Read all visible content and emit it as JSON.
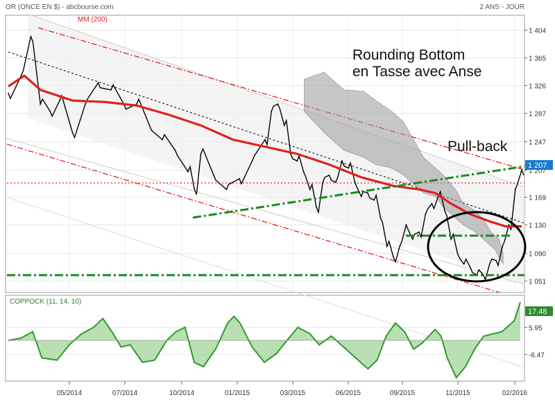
{
  "header": {
    "instrument": "OR (ONCE EN $) - abcbourse.com",
    "period": "2 ANS - JOUR"
  },
  "chart_data": [
    {
      "type": "line",
      "panel": "price",
      "legend": "MM (200)",
      "y_ticks": [
        "1 404",
        "1 365",
        "1 326",
        "1 287",
        "1 247",
        "1 207",
        "1 169",
        "1 130",
        "1 090",
        "1 051"
      ],
      "ylim": [
        1035,
        1425
      ],
      "x_ticks": [
        "05/2014",
        "07/2014",
        "10/2014",
        "01/2015",
        "03/2015",
        "06/2015",
        "09/2015",
        "11/2015",
        "02/2016"
      ],
      "last_value": "1 207",
      "colors": {
        "price": "#000000",
        "ma200": "#e02020",
        "channel": "#e02020",
        "trend": "#1a8a1a"
      },
      "price": [
        [
          0,
          1315
        ],
        [
          4,
          1340
        ],
        [
          7,
          1395
        ],
        [
          10,
          1300
        ],
        [
          13,
          1290
        ],
        [
          16,
          1305
        ],
        [
          20,
          1260
        ],
        [
          24,
          1300
        ],
        [
          28,
          1330
        ],
        [
          32,
          1320
        ],
        [
          36,
          1300
        ],
        [
          40,
          1300
        ],
        [
          44,
          1270
        ],
        [
          48,
          1250
        ],
        [
          52,
          1235
        ],
        [
          56,
          1205
        ],
        [
          58,
          1180
        ],
        [
          60,
          1230
        ],
        [
          64,
          1200
        ],
        [
          68,
          1180
        ],
        [
          72,
          1195
        ],
        [
          76,
          1220
        ],
        [
          80,
          1250
        ],
        [
          82,
          1290
        ],
        [
          84,
          1300
        ],
        [
          86,
          1270
        ],
        [
          88,
          1230
        ],
        [
          90,
          1220
        ],
        [
          92,
          1205
        ],
        [
          94,
          1180
        ],
        [
          96,
          1155
        ],
        [
          98,
          1190
        ],
        [
          100,
          1200
        ],
        [
          102,
          1190
        ],
        [
          104,
          1220
        ],
        [
          106,
          1210
        ],
        [
          108,
          1190
        ],
        [
          110,
          1170
        ],
        [
          112,
          1175
        ],
        [
          114,
          1165
        ],
        [
          116,
          1140
        ],
        [
          118,
          1100
        ],
        [
          120,
          1085
        ],
        [
          122,
          1100
        ],
        [
          124,
          1130
        ],
        [
          126,
          1110
        ],
        [
          128,
          1120
        ],
        [
          130,
          1145
        ],
        [
          132,
          1160
        ],
        [
          134,
          1170
        ],
        [
          136,
          1150
        ],
        [
          138,
          1110
        ],
        [
          140,
          1090
        ],
        [
          142,
          1075
        ],
        [
          144,
          1070
        ],
        [
          146,
          1060
        ],
        [
          148,
          1060
        ],
        [
          150,
          1075
        ],
        [
          152,
          1080
        ],
        [
          154,
          1100
        ],
        [
          156,
          1130
        ],
        [
          158,
          1180
        ],
        [
          160,
          1207
        ]
      ],
      "ma200": [
        [
          0,
          1325
        ],
        [
          5,
          1340
        ],
        [
          10,
          1320
        ],
        [
          20,
          1305
        ],
        [
          30,
          1303
        ],
        [
          40,
          1298
        ],
        [
          50,
          1285
        ],
        [
          60,
          1270
        ],
        [
          70,
          1250
        ],
        [
          80,
          1240
        ],
        [
          90,
          1230
        ],
        [
          100,
          1215
        ],
        [
          110,
          1197
        ],
        [
          120,
          1185
        ],
        [
          128,
          1180
        ],
        [
          133,
          1175
        ],
        [
          138,
          1160
        ],
        [
          144,
          1145
        ],
        [
          150,
          1135
        ],
        [
          155,
          1128
        ],
        [
          160,
          1128
        ]
      ]
    },
    {
      "type": "area",
      "panel": "oscillator",
      "legend": "COPPOCK (11, 14, 10)",
      "y_ticks": [
        "5.95",
        "-6.47"
      ],
      "ylim": [
        -18,
        20
      ],
      "last_value": "17.48",
      "colors": {
        "line": "#2e9a2e",
        "fill": "#a8d8a0"
      },
      "values": [
        [
          0,
          0
        ],
        [
          4,
          1
        ],
        [
          8,
          4
        ],
        [
          11,
          -8
        ],
        [
          16,
          -9
        ],
        [
          20,
          -2
        ],
        [
          24,
          3
        ],
        [
          28,
          6
        ],
        [
          31,
          10
        ],
        [
          34,
          4
        ],
        [
          37,
          -3
        ],
        [
          40,
          -2
        ],
        [
          44,
          -10
        ],
        [
          48,
          -9
        ],
        [
          52,
          0
        ],
        [
          55,
          4
        ],
        [
          58,
          6
        ],
        [
          61,
          -10
        ],
        [
          64,
          -12
        ],
        [
          68,
          -4
        ],
        [
          72,
          8
        ],
        [
          74,
          11
        ],
        [
          76,
          8
        ],
        [
          80,
          -3
        ],
        [
          84,
          -10
        ],
        [
          88,
          -6
        ],
        [
          92,
          1
        ],
        [
          95,
          6
        ],
        [
          99,
          3
        ],
        [
          102,
          -2
        ],
        [
          106,
          2
        ],
        [
          110,
          -3
        ],
        [
          114,
          -8
        ],
        [
          118,
          -13
        ],
        [
          121,
          -9
        ],
        [
          124,
          2
        ],
        [
          127,
          8
        ],
        [
          130,
          4
        ],
        [
          133,
          -4
        ],
        [
          136,
          -1
        ],
        [
          140,
          5
        ],
        [
          142,
          2
        ],
        [
          144,
          -8
        ],
        [
          147,
          -17
        ],
        [
          150,
          -12
        ],
        [
          153,
          -4
        ],
        [
          156,
          2
        ],
        [
          159,
          3
        ],
        [
          162,
          4
        ],
        [
          166,
          9
        ],
        [
          168,
          17.48
        ]
      ]
    }
  ],
  "annotations": {
    "pattern_line1": "Rounding Bottom",
    "pattern_line2": "en Tasse avec Anse",
    "pullback": "Pull-back"
  }
}
